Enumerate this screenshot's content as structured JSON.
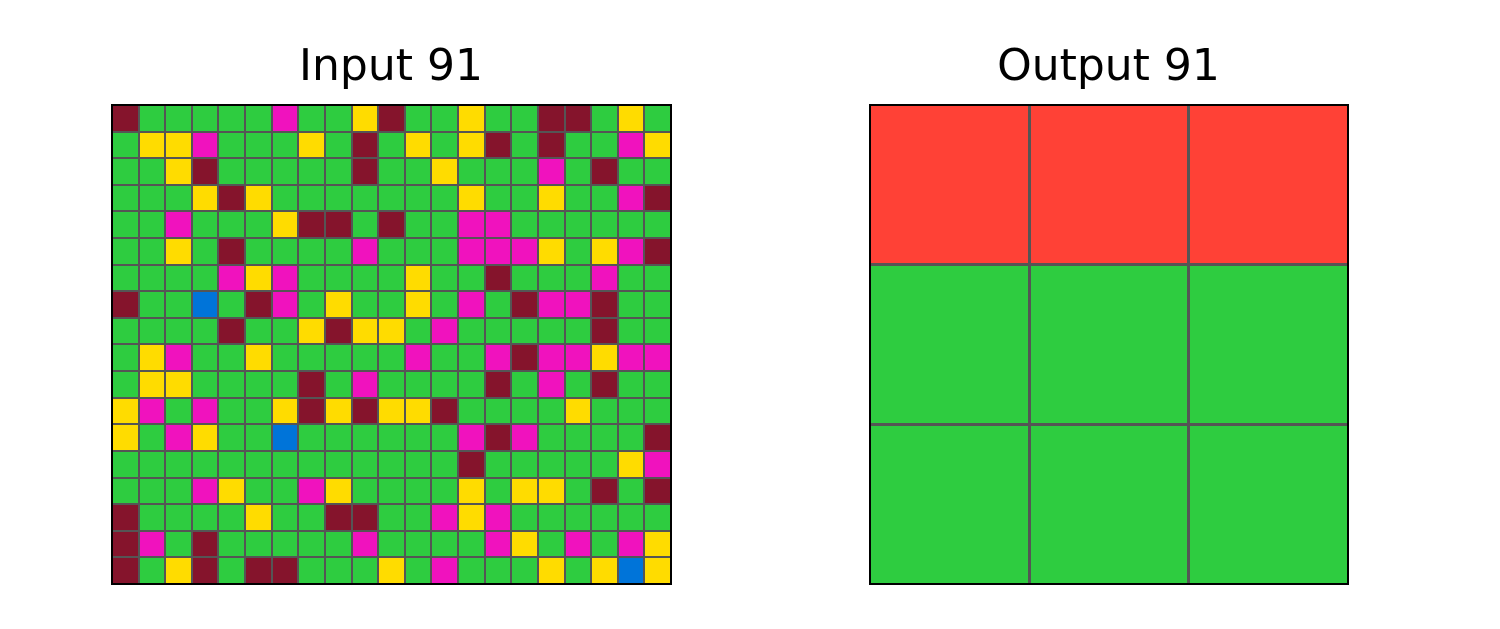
{
  "input_title": "Input 91",
  "output_title": "Output 91",
  "palette": {
    "G": "#2ECC40",
    "M": "#85142C",
    "Y": "#FFDC00",
    "P": "#F012BE",
    "B": "#0074D9",
    "R": "#FF4136"
  },
  "input_grid": [
    "MGGGGGPGGYMGGYGGMMGYG",
    "GYYPGGGYGMGYGYMGMGGPY",
    "GGYMGGGGGMGGYGGGPGMGG",
    "GGGYMYGGGGGGGYGGYGGPM",
    "GGPGGGYMMGMGGPPGGGGGG",
    "GGYGMGGGGPGGGPPPYGYPM",
    "GGGGPYPGGGGYGGMGGGPGG",
    "MGGBGMPGYGGYGPGMPPMGG",
    "GGGGMGGYMYYGPGGGGGMGG",
    "GYPGGYGGGGGPGGPMPPYPP",
    "GYYGGGGMGPGGGGMGPGMGG",
    "YPGPGGYMYMYYMGGGGYGGG",
    "YGPYGGBGGGGGGPMPGGGGM",
    "GGGGGGGGGGGGGMGGGGGYP",
    "GGGPYGGPYGGGGYGYYGMGM",
    "MGGGGYGGMMGGPYPGGGGGG",
    "MPGMGGGGGPGGGGPYGPGPY",
    "MGYMGMMGGGYGPGGGYGYBY"
  ],
  "output_grid": [
    "RRR",
    "GGG",
    "GGG"
  ]
}
